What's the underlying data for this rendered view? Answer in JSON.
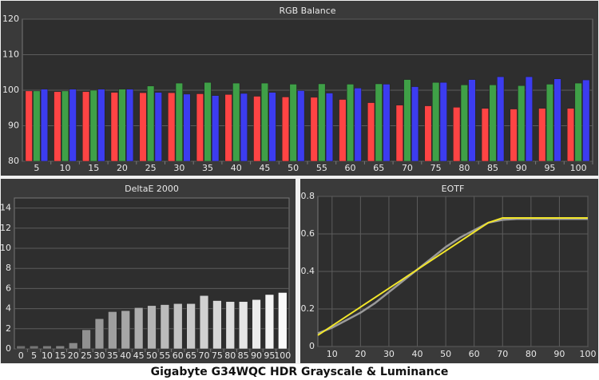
{
  "caption": "Gigabyte G34WQC HDR Grayscale & Luminance",
  "chart_data": [
    {
      "type": "bar",
      "title": "RGB Balance",
      "categories": [
        "5",
        "10",
        "15",
        "20",
        "25",
        "30",
        "35",
        "40",
        "45",
        "50",
        "55",
        "60",
        "65",
        "70",
        "75",
        "80",
        "85",
        "90",
        "95",
        "100"
      ],
      "series": [
        {
          "color": "#ff4444",
          "values": [
            99.8,
            99.6,
            99.6,
            99.4,
            99.3,
            99.3,
            99.0,
            98.8,
            98.3,
            98.1,
            98.0,
            97.4,
            96.5,
            95.8,
            95.6,
            95.2,
            94.9,
            94.7,
            94.9,
            94.9
          ]
        },
        {
          "color": "#3fa047",
          "values": [
            99.8,
            99.8,
            100.0,
            100.3,
            101.2,
            102.0,
            102.2,
            102.0,
            102.0,
            101.7,
            101.8,
            101.7,
            101.8,
            103.0,
            102.2,
            101.5,
            101.5,
            101.3,
            101.7,
            102.0
          ]
        },
        {
          "color": "#3c3cf0",
          "values": [
            100.3,
            100.3,
            100.3,
            100.3,
            99.4,
            98.9,
            98.5,
            99.1,
            99.4,
            99.9,
            99.2,
            100.6,
            101.7,
            101.0,
            102.2,
            103.0,
            103.8,
            103.8,
            103.2,
            102.9
          ]
        }
      ],
      "ylim": [
        80,
        120
      ],
      "yticks": [
        80,
        90,
        100,
        110,
        120
      ],
      "grid": true
    },
    {
      "type": "bar",
      "title": "DeltaE 2000",
      "categories": [
        "0",
        "5",
        "10",
        "15",
        "20",
        "25",
        "30",
        "35",
        "40",
        "45",
        "50",
        "55",
        "60",
        "65",
        "70",
        "75",
        "80",
        "85",
        "90",
        "95",
        "100"
      ],
      "series": [
        {
          "color": "gradient",
          "values": [
            0.3,
            0.3,
            0.3,
            0.3,
            0.6,
            1.9,
            3.0,
            3.7,
            3.8,
            4.1,
            4.3,
            4.4,
            4.5,
            4.5,
            5.3,
            4.8,
            4.7,
            4.7,
            4.9,
            5.4,
            5.6
          ]
        }
      ],
      "ylim": [
        0,
        15
      ],
      "yticks": [
        0,
        2,
        4,
        6,
        8,
        10,
        12,
        14
      ],
      "grid": true
    },
    {
      "type": "line",
      "title": "EOTF",
      "x": [
        5,
        10,
        15,
        20,
        25,
        30,
        35,
        40,
        45,
        50,
        55,
        60,
        65,
        70,
        75,
        80,
        85,
        90,
        95,
        100
      ],
      "series": [
        {
          "color": "#9a9a9a",
          "values": [
            0.07,
            0.1,
            0.14,
            0.18,
            0.23,
            0.29,
            0.35,
            0.41,
            0.47,
            0.53,
            0.58,
            0.62,
            0.66,
            0.675,
            0.68,
            0.68,
            0.68,
            0.68,
            0.68,
            0.68
          ]
        },
        {
          "color": "#f2e62a",
          "values": [
            0.06,
            0.11,
            0.16,
            0.21,
            0.26,
            0.31,
            0.36,
            0.41,
            0.46,
            0.51,
            0.56,
            0.61,
            0.66,
            0.685,
            0.685,
            0.685,
            0.685,
            0.685,
            0.685,
            0.685
          ]
        }
      ],
      "xlim": [
        5,
        100
      ],
      "xticks": [
        10,
        20,
        30,
        40,
        50,
        60,
        70,
        80,
        90,
        100
      ],
      "ylim": [
        0,
        0.8
      ],
      "yticks": [
        0,
        0.2,
        0.4,
        0.6,
        0.8
      ],
      "grid": true
    }
  ]
}
